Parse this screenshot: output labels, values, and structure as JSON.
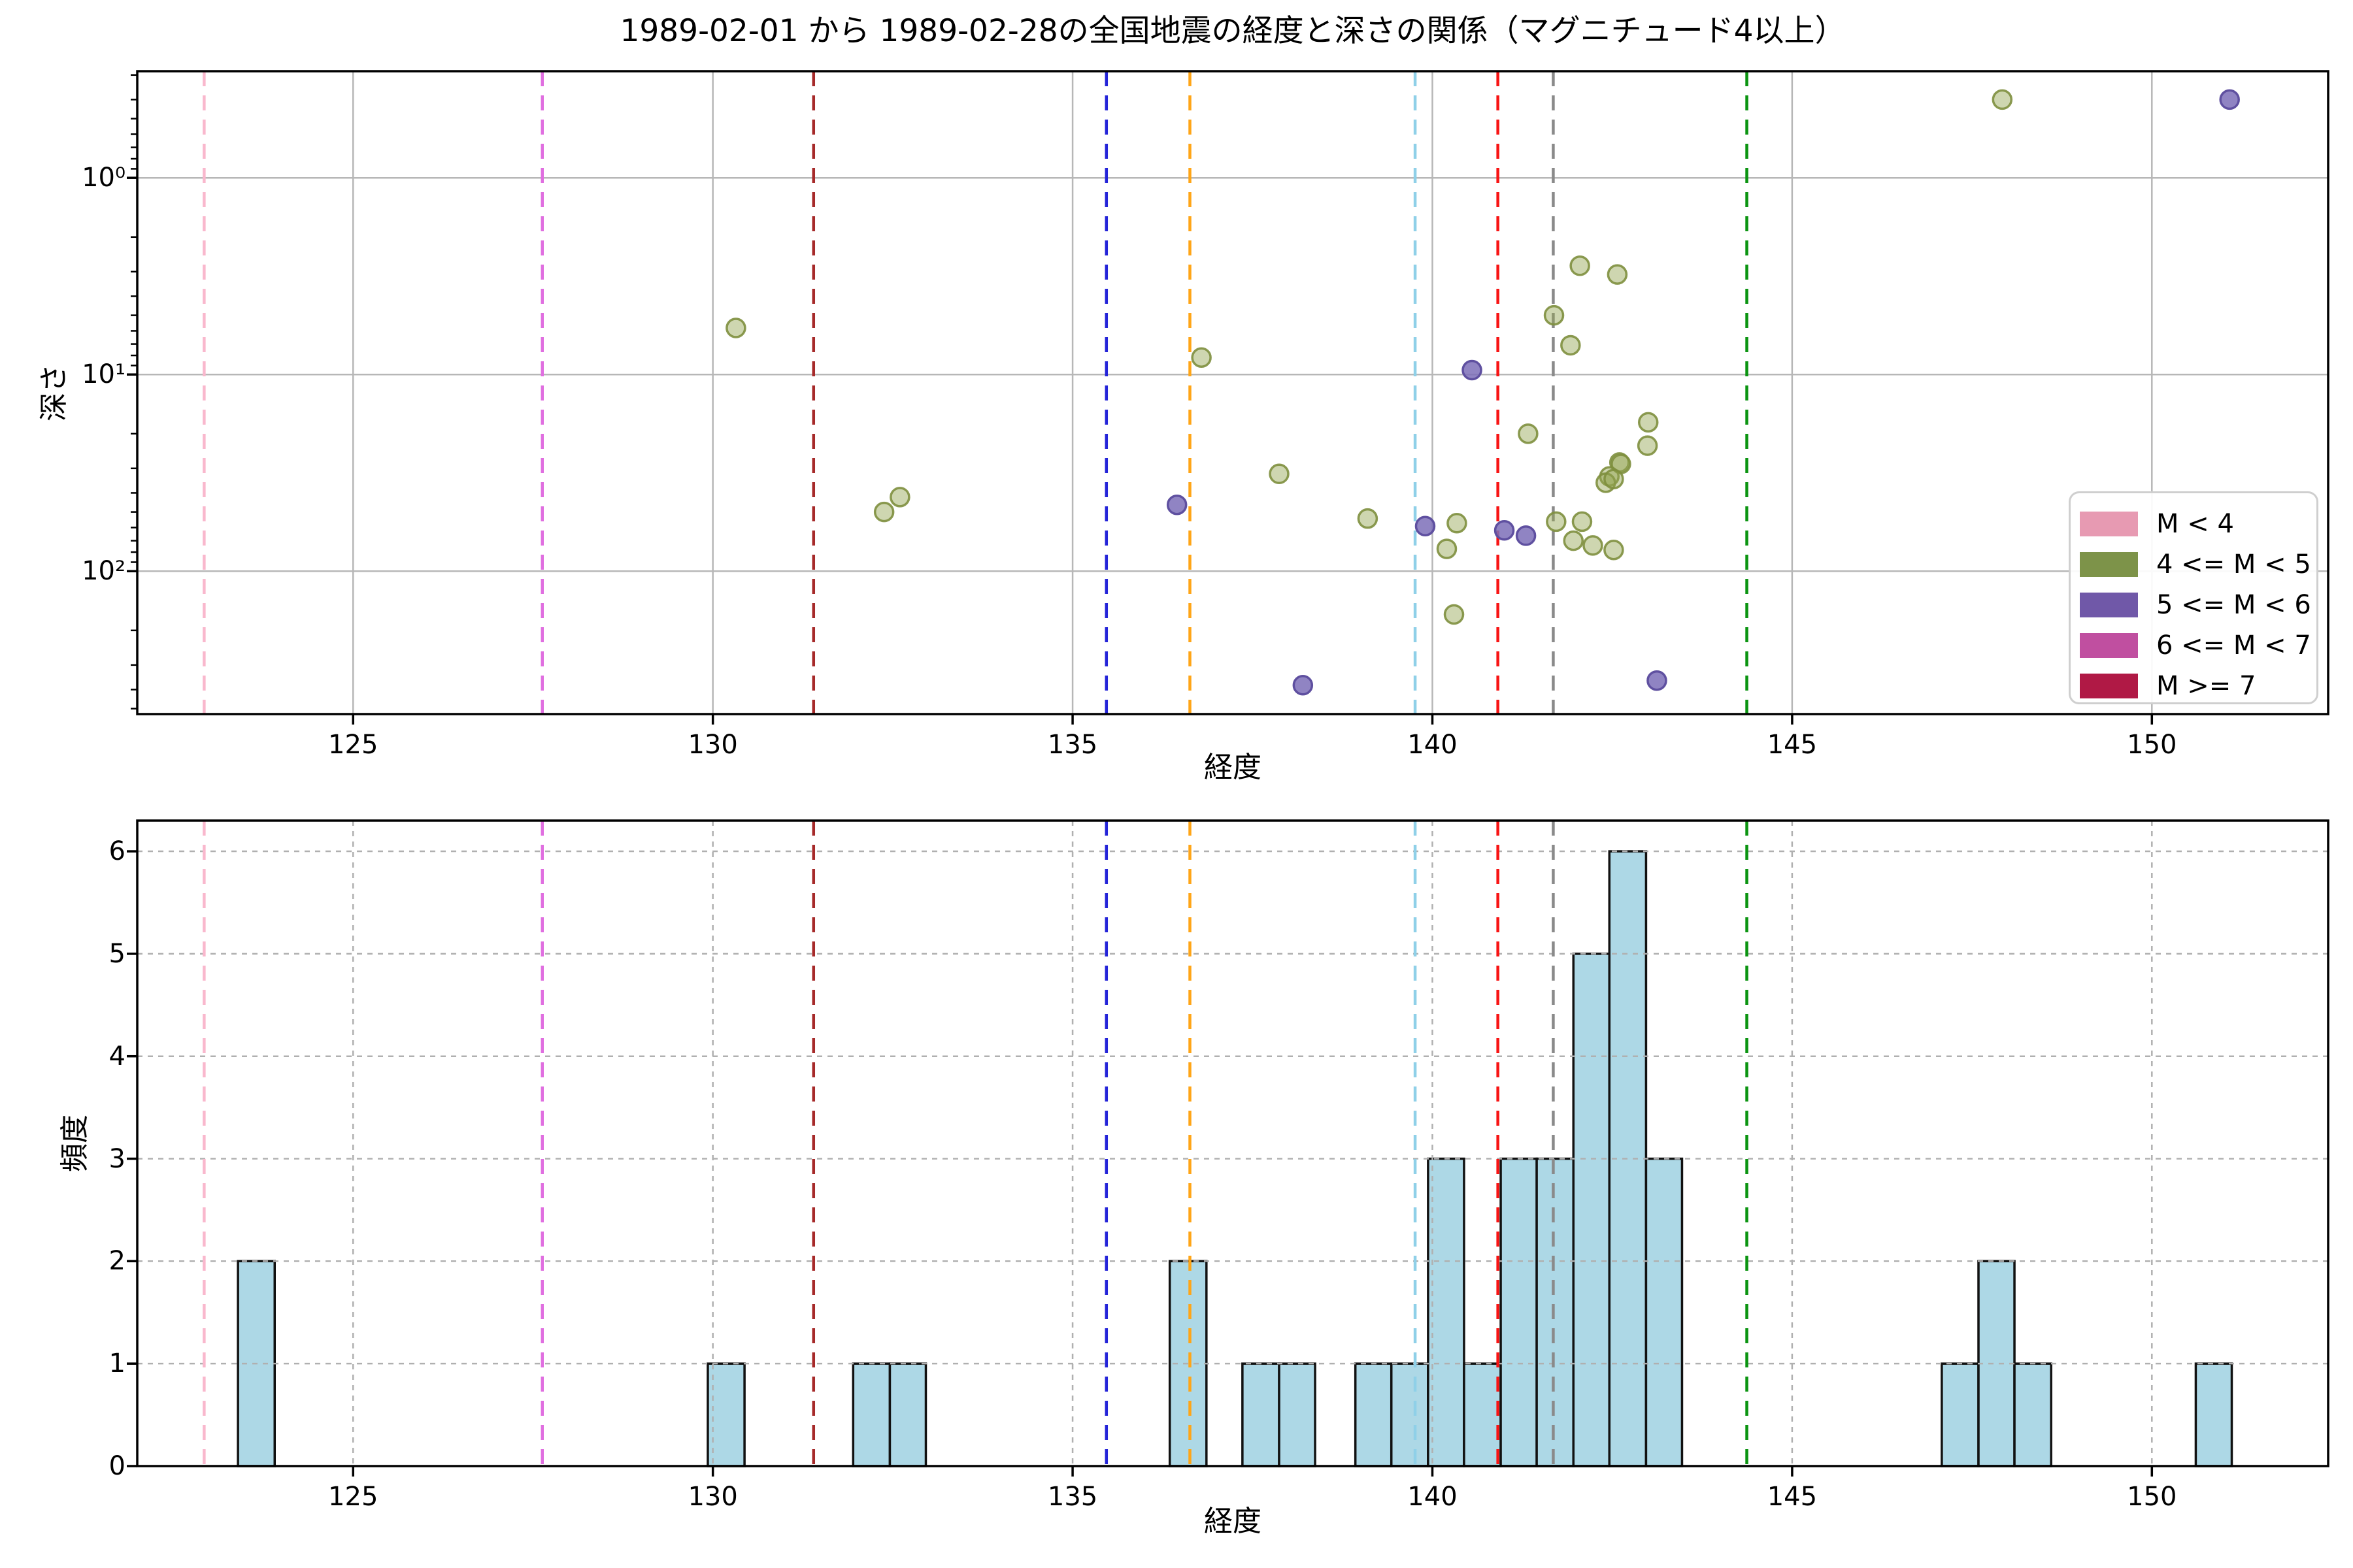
{
  "figure": {
    "title": "1989-02-01 から 1989-02-28の全国地震の経度と深さの関係（マグニチュード4以上）",
    "background": "#ffffff"
  },
  "chart_data": [
    {
      "type": "scatter",
      "xlabel": "経度",
      "ylabel": "深さ",
      "xlim": [
        122.0,
        152.45
      ],
      "ylim_depth": [
        0.287,
        533
      ],
      "yscale": "log",
      "y_inverted": true,
      "x_ticks": [
        125,
        130,
        135,
        140,
        145,
        150
      ],
      "y_ticks": [
        1,
        10,
        100
      ],
      "y_tick_labels": [
        "10⁰",
        "10¹",
        "10²"
      ],
      "grid": {
        "style": "solid",
        "color": "#b7b7b7"
      },
      "series": [
        {
          "name": "4 <= M < 5",
          "fill": "#93a350",
          "fill_opacity": 0.45,
          "stroke": "#7e8f3e",
          "stroke_opacity": 0.9,
          "points": [
            [
              130.32,
              5.8
            ],
            [
              132.38,
              50
            ],
            [
              132.6,
              42
            ],
            [
              136.79,
              8.2
            ],
            [
              137.87,
              32
            ],
            [
              139.1,
              54
            ],
            [
              140.2,
              77
            ],
            [
              140.3,
              166
            ],
            [
              140.34,
              57
            ],
            [
              141.33,
              20
            ],
            [
              141.69,
              5.0
            ],
            [
              141.92,
              7.1
            ],
            [
              142.05,
              2.8
            ],
            [
              142.57,
              3.1
            ],
            [
              143.0,
              17.5
            ],
            [
              142.99,
              23
            ],
            [
              142.6,
              28
            ],
            [
              142.62,
              28.5
            ],
            [
              142.46,
              33
            ],
            [
              142.41,
              35.5
            ],
            [
              142.52,
              34
            ],
            [
              141.72,
              56
            ],
            [
              142.08,
              56
            ],
            [
              141.96,
              70
            ],
            [
              142.23,
              74
            ],
            [
              142.52,
              78
            ],
            [
              147.92,
              0.4
            ]
          ]
        },
        {
          "name": "5 <= M < 6",
          "fill": "#7d6fb8",
          "fill_opacity": 0.85,
          "stroke": "#5f50a0",
          "stroke_opacity": 1,
          "points": [
            [
              140.55,
              9.5
            ],
            [
              136.45,
              46
            ],
            [
              139.9,
              59
            ],
            [
              141.0,
              62
            ],
            [
              141.3,
              66
            ],
            [
              138.2,
              380
            ],
            [
              143.12,
              360
            ],
            [
              151.08,
              0.4
            ]
          ]
        }
      ],
      "vlines": [
        {
          "x": 122.93,
          "color": "#f9b8cd"
        },
        {
          "x": 127.63,
          "color": "#e böl06ee0"
        },
        {
          "x": 131.4,
          "color": "#a62a2a"
        },
        {
          "x": 135.47,
          "color": "#2424d8"
        },
        {
          "x": 136.63,
          "color": "#ffa517"
        },
        {
          "x": 139.76,
          "color": "#8fd0e8"
        },
        {
          "x": 140.91,
          "color": "#f81414"
        },
        {
          "x": 141.68,
          "color": "#8a8a8a"
        },
        {
          "x": 144.37,
          "color": "#0a9410"
        }
      ],
      "legend": {
        "position": "right-center",
        "entries": [
          {
            "label": "M < 4",
            "color": "#e79ab2"
          },
          {
            "label": "4 <= M < 5",
            "color": "#7d9349"
          },
          {
            "label": "5 <= M < 6",
            "color": "#7058a8"
          },
          {
            "label": "6 <= M < 7",
            "color": "#c04fa0"
          },
          {
            "label": "M >= 7",
            "color": "#b01945"
          }
        ]
      }
    },
    {
      "type": "bar",
      "xlabel": "経度",
      "ylabel": "頻度",
      "xlim": [
        122.0,
        152.45
      ],
      "ylim": [
        0,
        6.3
      ],
      "x_ticks": [
        125,
        130,
        135,
        140,
        145,
        150
      ],
      "y_ticks": [
        0,
        1,
        2,
        3,
        4,
        5,
        6
      ],
      "grid": {
        "style": "dashed",
        "color": "#b0b0b0"
      },
      "bar_fill": "#add8e6",
      "bar_edge": "#111111",
      "bars": [
        {
          "x0": 123.4,
          "x1": 123.91,
          "h": 2
        },
        {
          "x0": 129.93,
          "x1": 130.44,
          "h": 1
        },
        {
          "x0": 131.95,
          "x1": 132.46,
          "h": 1
        },
        {
          "x0": 132.46,
          "x1": 132.96,
          "h": 1
        },
        {
          "x0": 136.35,
          "x1": 136.86,
          "h": 2
        },
        {
          "x0": 137.36,
          "x1": 137.87,
          "h": 1
        },
        {
          "x0": 137.87,
          "x1": 138.37,
          "h": 1
        },
        {
          "x0": 138.93,
          "x1": 139.43,
          "h": 1
        },
        {
          "x0": 139.43,
          "x1": 139.94,
          "h": 1
        },
        {
          "x0": 139.94,
          "x1": 140.44,
          "h": 3
        },
        {
          "x0": 140.44,
          "x1": 140.95,
          "h": 1
        },
        {
          "x0": 140.95,
          "x1": 141.45,
          "h": 3
        },
        {
          "x0": 141.45,
          "x1": 141.96,
          "h": 3
        },
        {
          "x0": 141.96,
          "x1": 142.46,
          "h": 5
        },
        {
          "x0": 142.46,
          "x1": 142.97,
          "h": 6
        },
        {
          "x0": 142.97,
          "x1": 143.47,
          "h": 3
        },
        {
          "x0": 147.08,
          "x1": 147.59,
          "h": 1
        },
        {
          "x0": 147.59,
          "x1": 148.09,
          "h": 2
        },
        {
          "x0": 148.09,
          "x1": 148.6,
          "h": 1
        },
        {
          "x0": 150.61,
          "x1": 151.11,
          "h": 1
        }
      ],
      "vlines": [
        {
          "x": 122.93,
          "color": "#f9b8cd"
        },
        {
          "x": 127.63,
          "color": "#e06ee0"
        },
        {
          "x": 131.4,
          "color": "#a62a2a"
        },
        {
          "x": 135.47,
          "color": "#2424d8"
        },
        {
          "x": 136.63,
          "color": "#ffa517"
        },
        {
          "x": 139.76,
          "color": "#8fd0e8"
        },
        {
          "x": 140.91,
          "color": "#f81414"
        },
        {
          "x": 141.68,
          "color": "#8a8a8a"
        },
        {
          "x": 144.37,
          "color": "#0a9410"
        }
      ]
    }
  ]
}
